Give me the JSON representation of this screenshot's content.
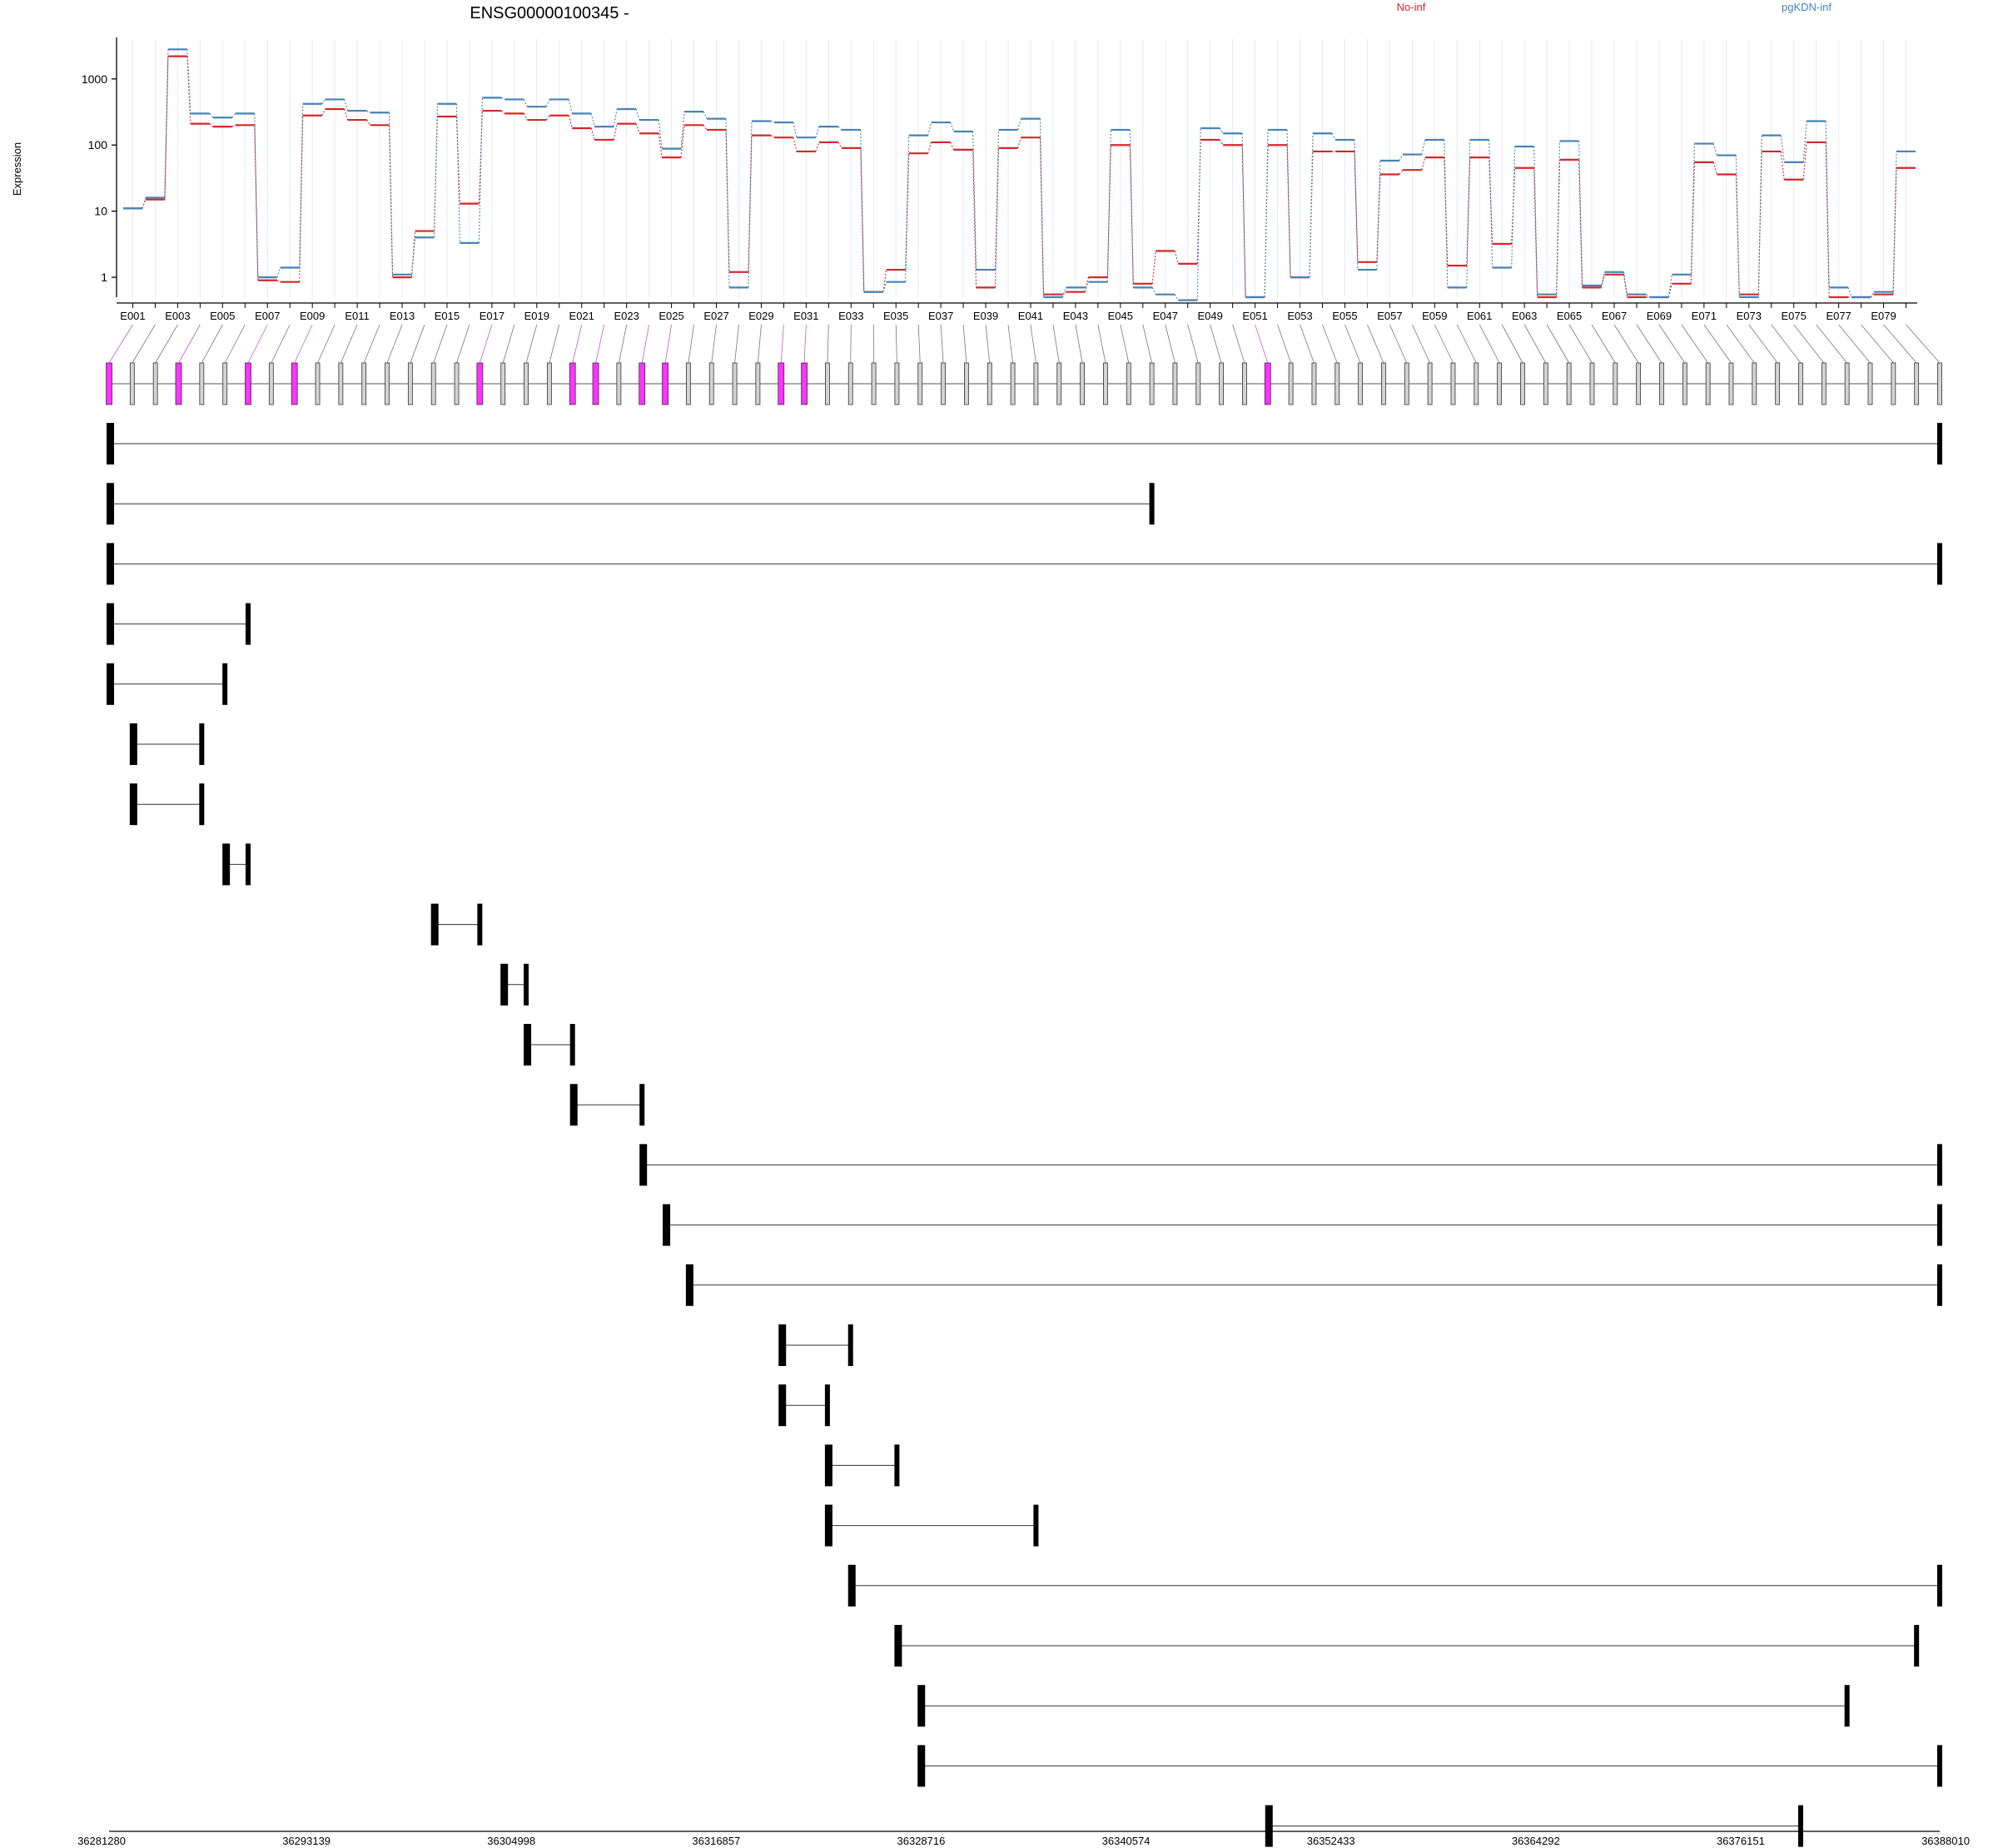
{
  "chart_data": {
    "type": "line",
    "title": "ENSG00000100345 -",
    "ylabel": "Expression",
    "yscale": "log",
    "ylim": [
      0.5,
      4000
    ],
    "yticks": [
      1,
      10,
      100,
      1000
    ],
    "ytick_labels": [
      "1",
      "10",
      "100",
      "1000"
    ],
    "legend": [
      "No-inf",
      "pgKDN-inf"
    ],
    "legend_placement": "top",
    "categories": [
      "E001",
      "E002",
      "E003",
      "E004",
      "E005",
      "E006",
      "E007",
      "E008",
      "E009",
      "E010",
      "E011",
      "E012",
      "E013",
      "E014",
      "E015",
      "E016",
      "E017",
      "E018",
      "E019",
      "E020",
      "E021",
      "E022",
      "E023",
      "E024",
      "E025",
      "E026",
      "E027",
      "E028",
      "E029",
      "E030",
      "E031",
      "E032",
      "E033",
      "E034",
      "E035",
      "E036",
      "E037",
      "E038",
      "E039",
      "E040",
      "E041",
      "E042",
      "E043",
      "E044",
      "E045",
      "E046",
      "E047",
      "E048",
      "E049",
      "E050",
      "E051",
      "E052",
      "E053",
      "E054",
      "E055",
      "E056",
      "E057",
      "E058",
      "E059",
      "E060",
      "E061",
      "E062",
      "E063",
      "E064",
      "E065",
      "E066",
      "E067",
      "E068",
      "E069",
      "E070",
      "E071",
      "E072",
      "E073",
      "E074",
      "E075",
      "E076",
      "E077",
      "E078",
      "E079",
      "E080"
    ],
    "xtick_labels": [
      "E001",
      "E003",
      "E005",
      "E007",
      "E009",
      "E011",
      "E013",
      "E015",
      "E017",
      "E019",
      "E021",
      "E023",
      "E025",
      "E027",
      "E029",
      "E031",
      "E033",
      "E035",
      "E037",
      "E039",
      "E041",
      "E043",
      "E045",
      "E047",
      "E049",
      "E051",
      "E053",
      "E055",
      "E057",
      "E059",
      "E061",
      "E063",
      "E065",
      "E067",
      "E069",
      "E071",
      "E073",
      "E075",
      "E077",
      "E079"
    ],
    "series": [
      {
        "name": "No-inf",
        "color": "#d62728",
        "values": [
          11,
          15,
          2200,
          210,
          190,
          200,
          0.9,
          0.85,
          280,
          350,
          240,
          200,
          1.0,
          5,
          270,
          13,
          330,
          300,
          240,
          280,
          180,
          120,
          210,
          150,
          65,
          200,
          170,
          1.2,
          140,
          130,
          80,
          110,
          90,
          0.6,
          1.3,
          75,
          110,
          85,
          0.7,
          90,
          130,
          0.55,
          0.6,
          1.0,
          100,
          0.8,
          2.5,
          1.6,
          120,
          100,
          0.5,
          100,
          1.0,
          80,
          80,
          1.7,
          36,
          42,
          65,
          1.5,
          65,
          3.2,
          45,
          0.5,
          60,
          0.7,
          1.1,
          0.5,
          0.5,
          0.8,
          55,
          36,
          0.55,
          80,
          30,
          110,
          0.5,
          0.5,
          0.55,
          45
        ]
      },
      {
        "name": "pgKDN-inf",
        "color": "#4682b4",
        "values": [
          11,
          16,
          2800,
          300,
          260,
          300,
          1.0,
          1.4,
          420,
          490,
          330,
          310,
          1.1,
          4,
          420,
          3.3,
          520,
          490,
          380,
          490,
          300,
          190,
          350,
          240,
          88,
          320,
          250,
          0.7,
          230,
          220,
          130,
          190,
          170,
          0.6,
          0.85,
          140,
          220,
          160,
          1.3,
          170,
          250,
          0.5,
          0.7,
          0.85,
          170,
          0.7,
          0.55,
          0.45,
          180,
          150,
          0.5,
          170,
          1.0,
          150,
          120,
          1.3,
          58,
          72,
          120,
          0.7,
          120,
          1.4,
          95,
          0.55,
          115,
          0.75,
          1.2,
          0.55,
          0.5,
          1.1,
          105,
          70,
          0.5,
          140,
          55,
          230,
          0.7,
          0.5,
          0.6,
          80
        ]
      }
    ],
    "gene_model": {
      "exon_colors": {
        "significant": "#ff33ff",
        "non_significant": "#d3d3d3"
      },
      "significant_exons": [
        "E001",
        "E004",
        "E007",
        "E009",
        "E017",
        "E021",
        "E022",
        "E024",
        "E025",
        "E030",
        "E031",
        "E051"
      ],
      "xaxis_ticks": [
        "36281280",
        "36293139",
        "36304998",
        "36316857",
        "36328716",
        "36340574",
        "36352433",
        "36364292",
        "36376151",
        "36388010"
      ]
    }
  }
}
